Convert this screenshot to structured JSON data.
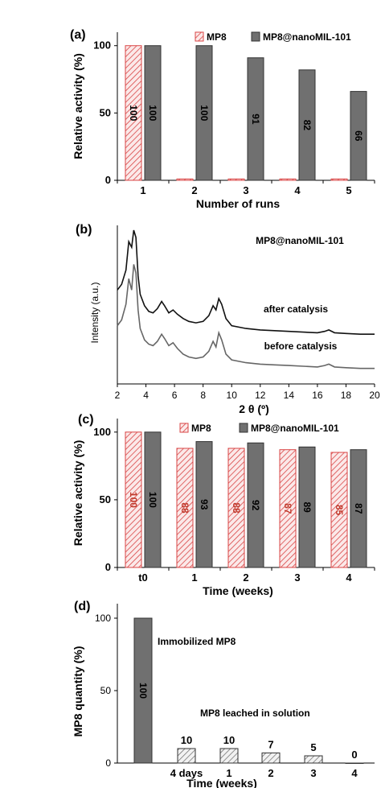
{
  "chart_data": [
    {
      "panel": "(a)",
      "type": "bar",
      "xlabel": "Number of runs",
      "ylabel": "Relative activity  (%)",
      "ylim": [
        0,
        110
      ],
      "yticks": [
        0,
        50,
        100
      ],
      "categories": [
        "1",
        "2",
        "3",
        "4",
        "5"
      ],
      "series": [
        {
          "name": "MP8",
          "values": [
            100,
            1,
            1,
            1,
            1
          ],
          "labels": [
            "100",
            "",
            "",
            "",
            ""
          ],
          "color": "#d94545",
          "pattern": "hatch"
        },
        {
          "name": "MP8@nanoMIL-101",
          "values": [
            100,
            100,
            91,
            82,
            66
          ],
          "labels": [
            "100",
            "100",
            "91",
            "82",
            "66"
          ],
          "color": "#707070",
          "pattern": "solid"
        }
      ],
      "legend": "top-right",
      "grid": false
    },
    {
      "panel": "(b)",
      "type": "line",
      "xlabel": "2 θ (º)",
      "ylabel": "Intensity (a.u.)",
      "xlim": [
        2,
        20
      ],
      "xticks": [
        2,
        4,
        6,
        8,
        10,
        12,
        14,
        16,
        18,
        20
      ],
      "sample_label": "MP8@nanoMIL-101",
      "series": [
        {
          "name": "after catalysis",
          "color": "#111111",
          "x": [
            2.0,
            2.3,
            2.6,
            2.8,
            3.0,
            3.15,
            3.3,
            3.45,
            3.6,
            3.9,
            4.2,
            4.5,
            4.8,
            5.1,
            5.3,
            5.6,
            5.9,
            6.2,
            6.6,
            7.0,
            7.5,
            8.0,
            8.4,
            8.7,
            8.9,
            9.1,
            9.3,
            9.6,
            10.0,
            11.0,
            12.0,
            13.0,
            14.0,
            15.0,
            16.0,
            16.5,
            16.8,
            17.2,
            18.0,
            19.0,
            20.0
          ],
          "y": [
            58,
            62,
            72,
            92,
            88,
            100,
            95,
            68,
            55,
            47,
            43,
            42,
            45,
            50,
            47,
            42,
            44,
            41,
            38,
            36,
            35,
            36,
            40,
            47,
            44,
            52,
            48,
            38,
            33,
            31,
            30,
            29.5,
            29,
            28.5,
            28,
            29,
            30,
            28,
            27.5,
            27,
            27
          ]
        },
        {
          "name": "before catalysis",
          "color": "#666666",
          "x": [
            2.0,
            2.3,
            2.6,
            2.8,
            3.0,
            3.15,
            3.3,
            3.45,
            3.6,
            3.9,
            4.2,
            4.5,
            4.8,
            5.1,
            5.3,
            5.6,
            5.9,
            6.2,
            6.6,
            7.0,
            7.5,
            8.0,
            8.4,
            8.7,
            8.9,
            9.1,
            9.3,
            9.6,
            10.0,
            11.0,
            12.0,
            13.0,
            14.0,
            15.0,
            16.0,
            16.5,
            16.8,
            17.2,
            18.0,
            19.0,
            20.0
          ],
          "y": [
            33,
            37,
            48,
            66,
            58,
            76,
            70,
            44,
            31,
            23,
            20,
            19,
            22,
            27,
            24,
            19,
            21,
            17,
            13,
            11,
            10,
            11,
            15,
            22,
            18,
            28,
            23,
            13,
            9,
            7,
            6,
            5.5,
            5,
            4.5,
            4,
            5,
            6,
            4,
            3.5,
            3,
            3
          ]
        }
      ],
      "grid": false
    },
    {
      "panel": "(c)",
      "type": "bar",
      "xlabel": "Time (weeks)",
      "ylabel": "Relative activity (%)",
      "ylim": [
        0,
        110
      ],
      "yticks": [
        0,
        50,
        100
      ],
      "categories": [
        "t0",
        "1",
        "2",
        "3",
        "4"
      ],
      "series": [
        {
          "name": "MP8",
          "values": [
            100,
            88,
            88,
            87,
            85
          ],
          "labels": [
            "100",
            "88",
            "88",
            "87",
            "85"
          ],
          "color": "#d94545",
          "pattern": "hatch"
        },
        {
          "name": "MP8@nanoMIL-101",
          "values": [
            100,
            93,
            92,
            89,
            87
          ],
          "labels": [
            "100",
            "93",
            "92",
            "89",
            "87"
          ],
          "color": "#707070",
          "pattern": "solid"
        }
      ],
      "legend": "top",
      "grid": false
    },
    {
      "panel": "(d)",
      "type": "bar",
      "xlabel": "Time (weeks)",
      "ylabel": "MP8 quantity  (%)",
      "ylim": [
        0,
        110
      ],
      "yticks": [
        0,
        50,
        100
      ],
      "categories": [
        "",
        "4 days",
        "1",
        "2",
        "3",
        "4"
      ],
      "values": [
        100,
        10,
        10,
        7,
        5,
        0
      ],
      "labels": [
        "100",
        "10",
        "10",
        "7",
        "5",
        "0"
      ],
      "annotations": [
        "Immobilized MP8",
        "MP8 leached  in solution"
      ],
      "grid": false
    }
  ]
}
